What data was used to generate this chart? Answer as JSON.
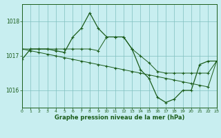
{
  "title": "Graphe pression niveau de la mer (hPa)",
  "bg_color": "#c8eef0",
  "grid_color": "#7fbfbf",
  "line_color": "#1a5c1a",
  "xlim": [
    0,
    23
  ],
  "ylim": [
    1015.5,
    1018.5
  ],
  "yticks": [
    1016,
    1017,
    1018
  ],
  "xticks": [
    0,
    1,
    2,
    3,
    4,
    5,
    6,
    7,
    8,
    9,
    10,
    11,
    12,
    13,
    14,
    15,
    16,
    17,
    18,
    19,
    20,
    21,
    22,
    23
  ],
  "series": [
    [
      1016.9,
      1017.2,
      1017.2,
      1017.2,
      1017.15,
      1017.1,
      1017.55,
      1017.8,
      1018.25,
      1017.8,
      1017.55,
      1017.55,
      1017.55,
      1017.2,
      1016.6,
      1016.35,
      1015.8,
      1015.65,
      1015.75,
      1016.0,
      1016.0,
      1016.75,
      1016.85,
      1016.85
    ],
    [
      1017.2,
      1017.2,
      1017.2,
      1017.2,
      1017.2,
      1017.2,
      1017.2,
      1017.2,
      1017.2,
      1017.15,
      1017.55,
      1017.55,
      1017.55,
      1017.2,
      1017.0,
      1016.8,
      1016.55,
      1016.5,
      1016.5,
      1016.5,
      1016.5,
      1016.5,
      1016.5,
      1016.85
    ],
    [
      1017.2,
      1017.15,
      1017.1,
      1017.05,
      1017.0,
      1016.95,
      1016.9,
      1016.85,
      1016.8,
      1016.75,
      1016.7,
      1016.65,
      1016.6,
      1016.55,
      1016.5,
      1016.45,
      1016.4,
      1016.35,
      1016.3,
      1016.25,
      1016.2,
      1016.15,
      1016.1,
      1016.85
    ]
  ]
}
